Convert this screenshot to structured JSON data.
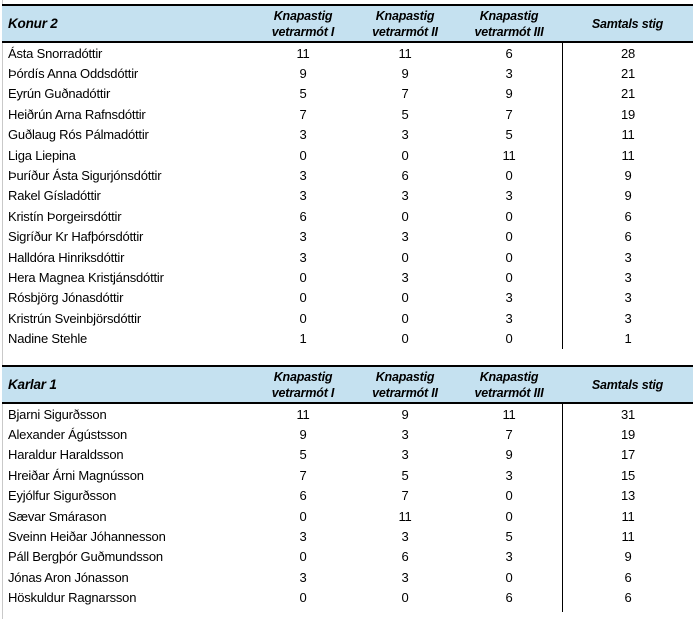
{
  "colors": {
    "header_bg": "#C5E1F0",
    "border": "#000000",
    "gridline": "#C9C9C9",
    "text": "#000000"
  },
  "columns": {
    "col1": {
      "line1": "Knapastig",
      "line2": "vetrarmót I"
    },
    "col2": {
      "line1": "Knapastig",
      "line2": "vetrarmót II"
    },
    "col3": {
      "line1": "Knapastig",
      "line2": "vetrarmót III"
    },
    "total": {
      "label": "Samtals stig"
    }
  },
  "tables": [
    {
      "title": "Konur 2",
      "rows": [
        {
          "name": "Ásta Snorradóttir",
          "v1": 11,
          "v2": 11,
          "v3": 6,
          "total": 28
        },
        {
          "name": "Þórdís Anna Oddsdóttir",
          "v1": 9,
          "v2": 9,
          "v3": 3,
          "total": 21
        },
        {
          "name": "Eyrún Guðnadóttir",
          "v1": 5,
          "v2": 7,
          "v3": 9,
          "total": 21
        },
        {
          "name": "Heiðrún Arna Rafnsdóttir",
          "v1": 7,
          "v2": 5,
          "v3": 7,
          "total": 19
        },
        {
          "name": "Guðlaug Rós Pálmadóttir",
          "v1": 3,
          "v2": 3,
          "v3": 5,
          "total": 11
        },
        {
          "name": "Liga Liepina",
          "v1": 0,
          "v2": 0,
          "v3": 11,
          "total": 11
        },
        {
          "name": "Þuríður Ásta Sigurjónsdóttir",
          "v1": 3,
          "v2": 6,
          "v3": 0,
          "total": 9
        },
        {
          "name": "Rakel Gísladóttir",
          "v1": 3,
          "v2": 3,
          "v3": 3,
          "total": 9
        },
        {
          "name": "Kristín Þorgeirsdóttir",
          "v1": 6,
          "v2": 0,
          "v3": 0,
          "total": 6
        },
        {
          "name": "Sigríður Kr Hafþórsdóttir",
          "v1": 3,
          "v2": 3,
          "v3": 0,
          "total": 6
        },
        {
          "name": "Halldóra Hinriksdóttir",
          "v1": 3,
          "v2": 0,
          "v3": 0,
          "total": 3
        },
        {
          "name": "Hera Magnea Kristjánsdóttir",
          "v1": 0,
          "v2": 3,
          "v3": 0,
          "total": 3
        },
        {
          "name": "Rósbjörg Jónasdóttir",
          "v1": 0,
          "v2": 0,
          "v3": 3,
          "total": 3
        },
        {
          "name": "Kristrún Sveinbjörsdóttir",
          "v1": 0,
          "v2": 0,
          "v3": 3,
          "total": 3
        },
        {
          "name": "Nadine Stehle",
          "v1": 1,
          "v2": 0,
          "v3": 0,
          "total": 1
        }
      ]
    },
    {
      "title": "Karlar 1",
      "rows": [
        {
          "name": "Bjarni Sigurðsson",
          "v1": 11,
          "v2": 9,
          "v3": 11,
          "total": 31
        },
        {
          "name": "Alexander Ágústsson",
          "v1": 9,
          "v2": 3,
          "v3": 7,
          "total": 19
        },
        {
          "name": "Haraldur Haraldsson",
          "v1": 5,
          "v2": 3,
          "v3": 9,
          "total": 17
        },
        {
          "name": "Hreiðar Árni Magnússon",
          "v1": 7,
          "v2": 5,
          "v3": 3,
          "total": 15
        },
        {
          "name": "Eyjólfur Sigurðsson",
          "v1": 6,
          "v2": 7,
          "v3": 0,
          "total": 13
        },
        {
          "name": "Sævar Smárason",
          "v1": 0,
          "v2": 11,
          "v3": 0,
          "total": 11
        },
        {
          "name": "Sveinn Heiðar Jóhannesson",
          "v1": 3,
          "v2": 3,
          "v3": 5,
          "total": 11
        },
        {
          "name": "Páll Bergþór Guðmundsson",
          "v1": 0,
          "v2": 6,
          "v3": 3,
          "total": 9
        },
        {
          "name": "Jónas Aron Jónasson",
          "v1": 3,
          "v2": 3,
          "v3": 0,
          "total": 6
        },
        {
          "name": "Höskuldur Ragnarsson",
          "v1": 0,
          "v2": 0,
          "v3": 6,
          "total": 6
        }
      ]
    }
  ]
}
